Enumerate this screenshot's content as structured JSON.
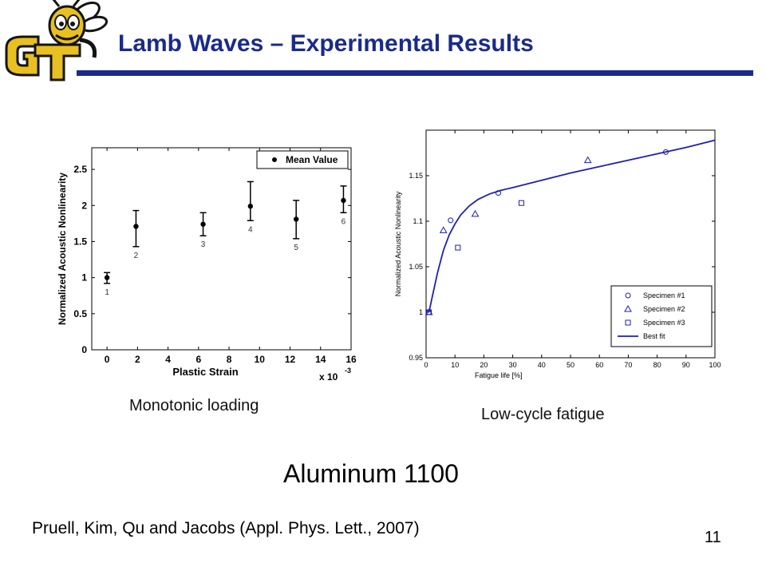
{
  "slide": {
    "title": "Lamb Waves – Experimental Results",
    "logo_text": "GT",
    "captions": {
      "left": "Monotonic loading",
      "right": "Low-cycle fatigue"
    },
    "material": "Aluminum 1100",
    "citation": "Pruell, Kim, Qu and Jacobs (Appl. Phys. Lett., 2007)",
    "page_number": "11",
    "colors": {
      "title": "#1a2a8c",
      "rule": "#1a2a8c",
      "fit_line": "#1f1fb4",
      "logo_gold": "#e8c020",
      "logo_dark": "#141414"
    }
  },
  "chart_data": [
    {
      "type": "scatter",
      "title": "",
      "xlabel": "Plastic Strain",
      "ylabel": "Normalized Acoustic Nonlinearity",
      "x_multiplier": "x 10",
      "x_multiplier_exp": "-3",
      "xlim": [
        -1,
        16
      ],
      "ylim": [
        0,
        2.8
      ],
      "xticks": [
        "0",
        "2",
        "4",
        "6",
        "8",
        "10",
        "12",
        "14",
        "16"
      ],
      "yticks": [
        "0",
        "0.5",
        "1",
        "1.5",
        "2",
        "2.5"
      ],
      "legend": {
        "position": "top-right",
        "entries": [
          "Mean Value"
        ]
      },
      "series": [
        {
          "name": "Mean Value",
          "points": [
            {
              "x": 0.0,
              "y": 1.0,
              "err_low": 0.92,
              "err_high": 1.07,
              "label": "1"
            },
            {
              "x": 1.9,
              "y": 1.71,
              "err_low": 1.43,
              "err_high": 1.93,
              "label": "2"
            },
            {
              "x": 6.3,
              "y": 1.74,
              "err_low": 1.58,
              "err_high": 1.9,
              "label": "3"
            },
            {
              "x": 9.4,
              "y": 1.99,
              "err_low": 1.79,
              "err_high": 2.33,
              "label": "4"
            },
            {
              "x": 12.4,
              "y": 1.81,
              "err_low": 1.54,
              "err_high": 2.07,
              "label": "5"
            },
            {
              "x": 15.5,
              "y": 2.07,
              "err_low": 1.9,
              "err_high": 2.27,
              "label": "6"
            }
          ]
        }
      ]
    },
    {
      "type": "scatter",
      "title": "",
      "xlabel": "Fatigue life [%]",
      "ylabel": "Normalized Acoustic Nonlinearity",
      "xlim": [
        0,
        100
      ],
      "ylim": [
        0.95,
        1.2
      ],
      "xticks": [
        "0",
        "10",
        "20",
        "30",
        "40",
        "50",
        "60",
        "70",
        "80",
        "90",
        "100"
      ],
      "yticks": [
        "0.95",
        "1",
        "1.05",
        "1.1",
        "1.15"
      ],
      "legend": {
        "position": "bottom-right",
        "entries": [
          "Specimen #1",
          "Specimen #2",
          "Specimen #3",
          "Best fit"
        ]
      },
      "series": [
        {
          "name": "Specimen #1",
          "marker": "circle",
          "x": [
            1,
            8.5,
            25,
            83
          ],
          "y": [
            1.0,
            1.101,
            1.131,
            1.176
          ]
        },
        {
          "name": "Specimen #2",
          "marker": "triangle",
          "x": [
            1,
            6,
            17,
            56
          ],
          "y": [
            1.0,
            1.09,
            1.108,
            1.167
          ]
        },
        {
          "name": "Specimen #3",
          "marker": "square",
          "x": [
            1,
            11,
            33
          ],
          "y": [
            1.0,
            1.071,
            1.12
          ]
        },
        {
          "name": "Best fit",
          "marker": "line",
          "x": [
            1,
            2,
            4,
            6,
            8,
            10,
            12,
            15,
            18,
            22,
            26,
            30,
            40,
            50,
            60,
            70,
            80,
            90,
            100
          ],
          "y": [
            1.0,
            1.015,
            1.044,
            1.068,
            1.085,
            1.097,
            1.107,
            1.117,
            1.124,
            1.13,
            1.134,
            1.137,
            1.145,
            1.153,
            1.16,
            1.167,
            1.174,
            1.181,
            1.189
          ]
        }
      ]
    }
  ]
}
